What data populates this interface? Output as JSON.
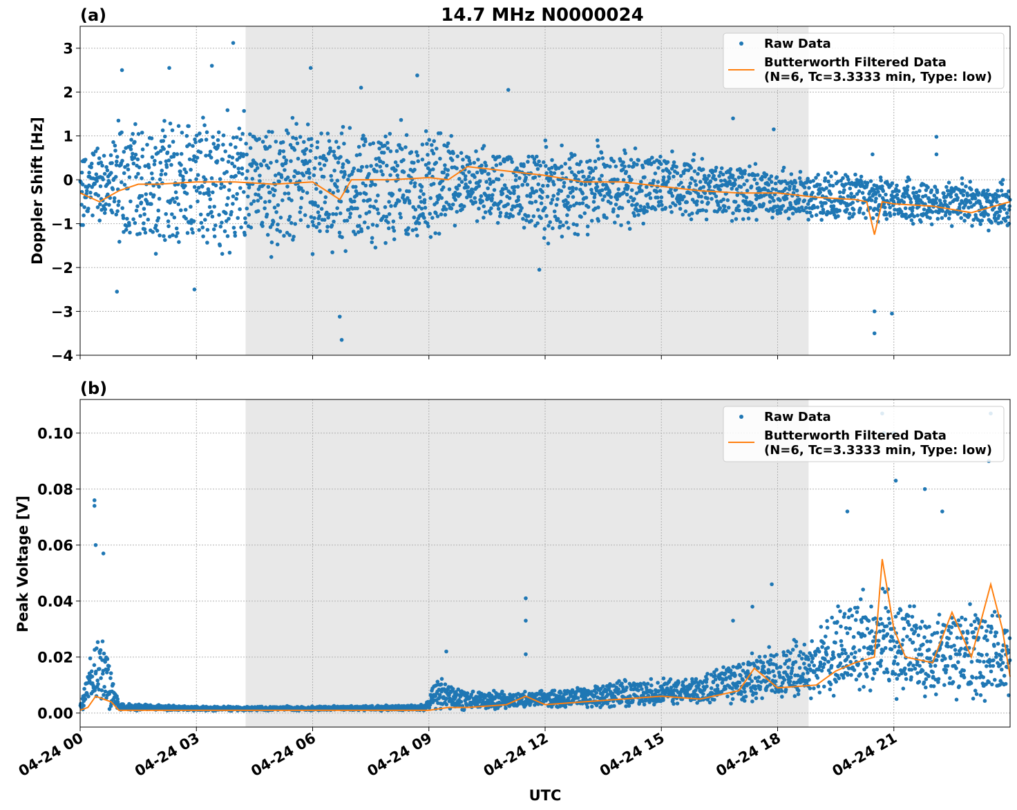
{
  "figure": {
    "xlabel": "UTC",
    "colors": {
      "raw": "#1f77b4",
      "filtered": "#ff7f0e",
      "shade": "#e8e8e8",
      "grid": "#b0b0b0"
    },
    "x_ticks": [
      "04-24 00",
      "04-24 03",
      "04-24 06",
      "04-24 09",
      "04-24 12",
      "04-24 15",
      "04-24 18",
      "04-24 21"
    ],
    "x_tick_hours": [
      0,
      3,
      6,
      9,
      12,
      15,
      18,
      21
    ],
    "x_range_hours": [
      0,
      24
    ],
    "shaded_interval_hours": [
      4.27,
      18.8
    ],
    "legend": {
      "raw": "Raw Data",
      "filtered_line1": "Butterworth Filtered Data",
      "filtered_line2": "(N=6, Tc=3.3333 min, Type: low)"
    }
  },
  "chart_data": [
    {
      "type": "scatter",
      "panel_label": "(a)",
      "title": "14.7 MHz N0000024",
      "ylabel": "Doppler Shift [Hz]",
      "ylim": [
        -4,
        3.5
      ],
      "y_ticks": [
        3,
        2,
        1,
        0,
        -1,
        -2,
        -3,
        -4
      ],
      "y_tick_labels": [
        "3",
        "2",
        "1",
        "0",
        "−1",
        "−2",
        "−3",
        "−4"
      ],
      "grid": true,
      "legend_position": "top-right",
      "series": [
        {
          "name": "Raw Data",
          "kind": "points",
          "envelope_hours": [
            0,
            0.8,
            1,
            3,
            6,
            9,
            10,
            12,
            15,
            18,
            21,
            24
          ],
          "envelope_low": [
            -1.2,
            -1.0,
            -1.8,
            -1.8,
            -1.8,
            -1.5,
            -0.9,
            -1.5,
            -1.0,
            -0.9,
            -1.0,
            -1.2
          ],
          "envelope_high": [
            1.0,
            0.8,
            1.6,
            1.6,
            1.6,
            1.4,
            0.8,
            0.9,
            0.7,
            0.3,
            0.1,
            0.0
          ],
          "outliers": [
            {
              "x": 1.08,
              "y": 2.5
            },
            {
              "x": 2.3,
              "y": 2.55
            },
            {
              "x": 3.4,
              "y": 2.6
            },
            {
              "x": 3.95,
              "y": 3.12
            },
            {
              "x": 5.95,
              "y": 2.55
            },
            {
              "x": 8.7,
              "y": 2.38
            },
            {
              "x": 6.75,
              "y": -3.65
            },
            {
              "x": 6.7,
              "y": -3.12
            },
            {
              "x": 0.95,
              "y": -2.55
            },
            {
              "x": 2.95,
              "y": -2.5
            },
            {
              "x": 11.85,
              "y": -2.05
            },
            {
              "x": 20.5,
              "y": -3.5
            },
            {
              "x": 20.5,
              "y": -3.0
            },
            {
              "x": 20.95,
              "y": -3.05
            },
            {
              "x": 20.45,
              "y": 0.58
            },
            {
              "x": 22.1,
              "y": 0.98
            },
            {
              "x": 22.1,
              "y": 0.58
            },
            {
              "x": 13.35,
              "y": 0.9
            },
            {
              "x": 17.9,
              "y": 1.15
            },
            {
              "x": 16.85,
              "y": 1.4
            },
            {
              "x": 11.05,
              "y": 2.05
            },
            {
              "x": 7.25,
              "y": 2.1
            }
          ]
        },
        {
          "name": "Butterworth Filtered Data (N=6, Tc=3.3333 min, Type: low)",
          "kind": "line",
          "x": [
            0,
            0.5,
            1,
            1.5,
            2,
            3,
            4,
            5,
            6,
            6.7,
            7,
            8,
            9,
            9.5,
            10,
            11,
            12,
            13,
            14,
            15,
            16,
            17,
            18,
            19,
            20,
            20.3,
            20.5,
            20.7,
            21,
            22,
            23,
            24
          ],
          "y": [
            -0.3,
            -0.5,
            -0.25,
            -0.1,
            -0.1,
            -0.05,
            -0.05,
            -0.1,
            -0.05,
            -0.45,
            0.0,
            0.0,
            0.05,
            0.0,
            0.3,
            0.2,
            0.1,
            -0.05,
            -0.05,
            -0.15,
            -0.25,
            -0.3,
            -0.3,
            -0.4,
            -0.45,
            -0.5,
            -1.25,
            -0.5,
            -0.55,
            -0.6,
            -0.75,
            -0.5
          ]
        }
      ]
    },
    {
      "type": "scatter",
      "panel_label": "(b)",
      "title": "",
      "ylabel": "Peak Voltage [V]",
      "ylim": [
        -0.005,
        0.112
      ],
      "y_ticks": [
        0.1,
        0.08,
        0.06,
        0.04,
        0.02,
        0.0
      ],
      "y_tick_labels": [
        "0.10",
        "0.08",
        "0.06",
        "0.04",
        "0.02",
        "0.00"
      ],
      "grid": true,
      "legend_position": "top-right",
      "series": [
        {
          "name": "Raw Data",
          "kind": "points",
          "envelope_hours": [
            0,
            0.2,
            0.4,
            0.6,
            0.8,
            1,
            3,
            6,
            8.9,
            9.2,
            10,
            12,
            14,
            16,
            17,
            18,
            19,
            20,
            21,
            22,
            23,
            24
          ],
          "envelope_low": [
            0.001,
            0.001,
            0.002,
            0.002,
            0.001,
            0.0008,
            0.0008,
            0.0008,
            0.0008,
            0.001,
            0.001,
            0.002,
            0.002,
            0.003,
            0.003,
            0.004,
            0.005,
            0.006,
            0.005,
            0.004,
            0.004,
            0.005
          ],
          "envelope_high": [
            0.004,
            0.02,
            0.03,
            0.03,
            0.02,
            0.0035,
            0.0025,
            0.0025,
            0.003,
            0.014,
            0.008,
            0.008,
            0.012,
            0.013,
            0.02,
            0.025,
            0.03,
            0.045,
            0.045,
            0.035,
            0.04,
            0.035
          ],
          "outliers": [
            {
              "x": 0.37,
              "y": 0.076
            },
            {
              "x": 0.37,
              "y": 0.074
            },
            {
              "x": 0.4,
              "y": 0.06
            },
            {
              "x": 0.6,
              "y": 0.057
            },
            {
              "x": 11.5,
              "y": 0.041
            },
            {
              "x": 11.5,
              "y": 0.033
            },
            {
              "x": 11.5,
              "y": 0.021
            },
            {
              "x": 9.45,
              "y": 0.022
            },
            {
              "x": 17.85,
              "y": 0.046
            },
            {
              "x": 17.35,
              "y": 0.038
            },
            {
              "x": 16.85,
              "y": 0.033
            },
            {
              "x": 19.8,
              "y": 0.072
            },
            {
              "x": 20.7,
              "y": 0.107
            },
            {
              "x": 20.75,
              "y": 0.1
            },
            {
              "x": 21.0,
              "y": 0.1
            },
            {
              "x": 21.05,
              "y": 0.083
            },
            {
              "x": 21.8,
              "y": 0.08
            },
            {
              "x": 22.25,
              "y": 0.072
            },
            {
              "x": 23.5,
              "y": 0.107
            },
            {
              "x": 23.45,
              "y": 0.09
            }
          ]
        },
        {
          "name": "Butterworth Filtered Data (N=6, Tc=3.3333 min, Type: low)",
          "kind": "line",
          "x": [
            0,
            0.2,
            0.4,
            0.6,
            0.8,
            1,
            3,
            6,
            9,
            9.5,
            10,
            11,
            11.5,
            12,
            13,
            14,
            15,
            16,
            17,
            17.4,
            18,
            19,
            19.5,
            20,
            20.5,
            20.7,
            21,
            21.3,
            22,
            22.5,
            23,
            23.5,
            23.8,
            24
          ],
          "y": [
            0.001,
            0.002,
            0.006,
            0.005,
            0.004,
            0.001,
            0.001,
            0.001,
            0.001,
            0.002,
            0.002,
            0.003,
            0.006,
            0.003,
            0.004,
            0.005,
            0.006,
            0.005,
            0.008,
            0.016,
            0.009,
            0.01,
            0.015,
            0.018,
            0.02,
            0.055,
            0.03,
            0.02,
            0.018,
            0.036,
            0.02,
            0.046,
            0.03,
            0.013
          ]
        }
      ]
    }
  ]
}
